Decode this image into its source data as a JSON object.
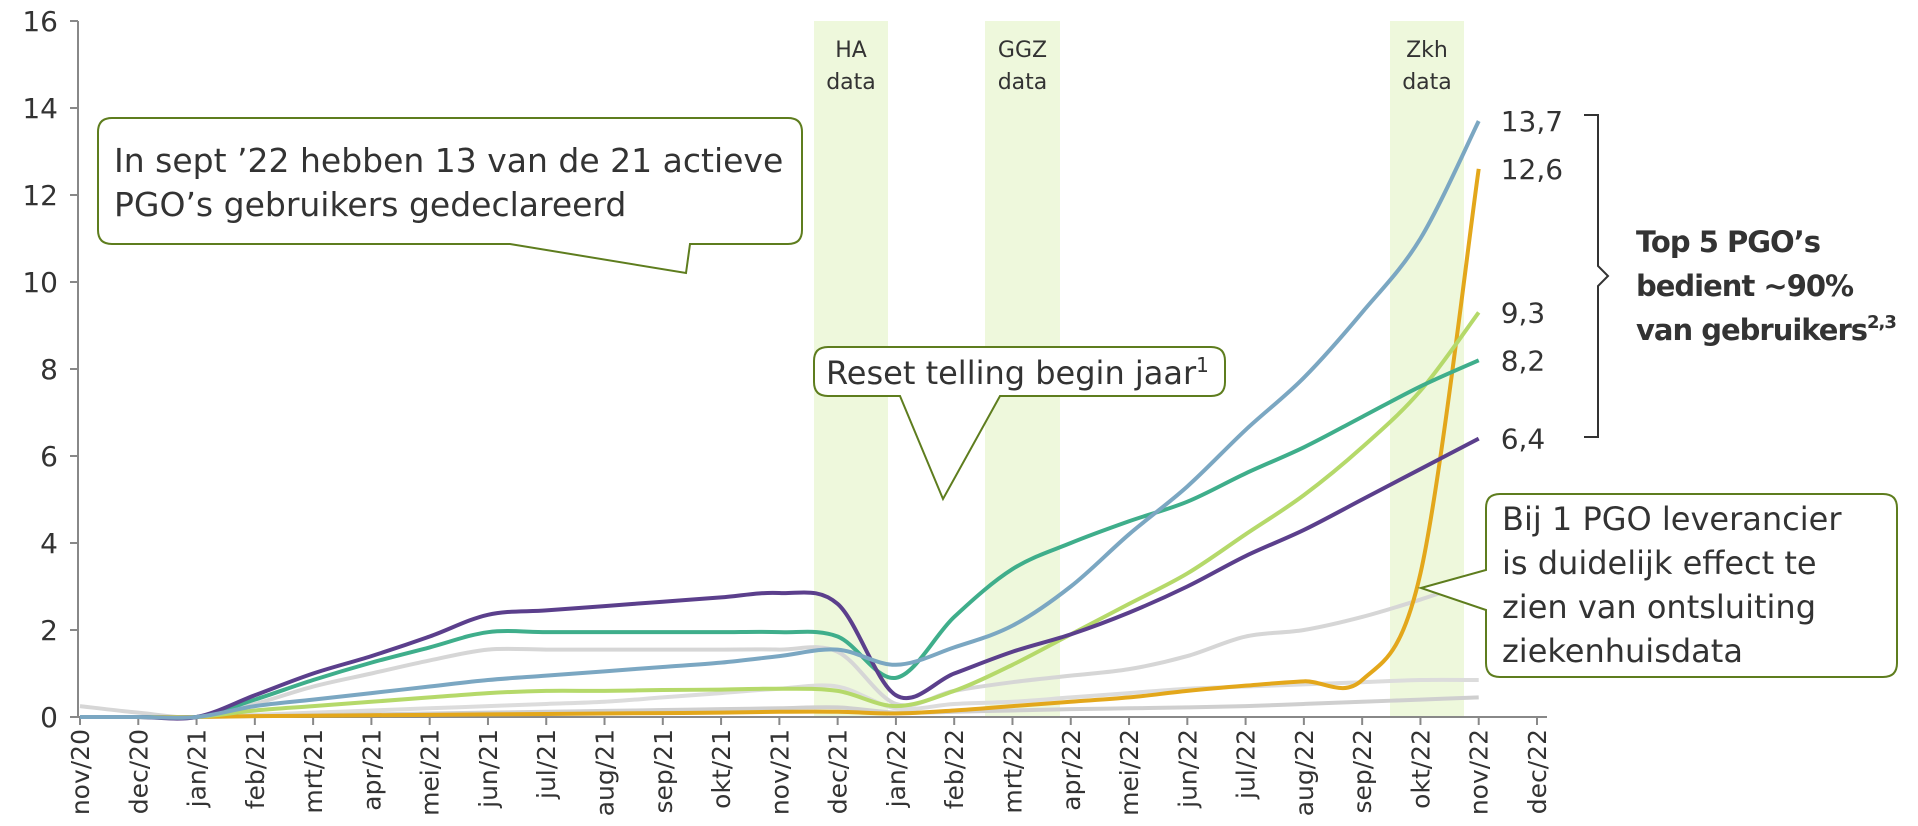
{
  "chart_data": {
    "type": "line",
    "categories": [
      "nov/20",
      "dec/20",
      "jan/21",
      "feb/21",
      "mrt/21",
      "apr/21",
      "mei/21",
      "jun/21",
      "jul/21",
      "aug/21",
      "sep/21",
      "okt/21",
      "nov/21",
      "dec/21",
      "jan/22",
      "feb/22",
      "mrt/22",
      "apr/22",
      "mei/22",
      "jun/22",
      "jul/22",
      "aug/22",
      "sep/22",
      "okt/22",
      "nov/22",
      "dec/22"
    ],
    "ylim": [
      0,
      16
    ],
    "yticks": [
      0,
      2,
      4,
      6,
      8,
      10,
      12,
      14,
      16
    ],
    "series": [
      {
        "color": "#d6d6d6",
        "values": [
          0.25,
          0.1,
          0,
          0.3,
          0.7,
          1.0,
          1.3,
          1.55,
          1.55,
          1.55,
          1.55,
          1.55,
          1.55,
          1.5,
          0.3,
          0.6,
          0.8,
          0.95,
          1.1,
          1.4,
          1.85,
          2.0,
          2.3,
          2.7,
          3.15,
          null
        ]
      },
      {
        "color": "#dcdcdc",
        "values": [
          0,
          0,
          0,
          0.05,
          0.1,
          0.15,
          0.2,
          0.25,
          0.3,
          0.35,
          0.45,
          0.55,
          0.65,
          0.7,
          0.2,
          0.3,
          0.35,
          0.45,
          0.55,
          0.65,
          0.7,
          0.75,
          0.8,
          0.85,
          0.85,
          null
        ]
      },
      {
        "color": "#cfcfcf",
        "values": [
          0,
          0,
          0,
          0.02,
          0.04,
          0.06,
          0.08,
          0.1,
          0.12,
          0.14,
          0.16,
          0.18,
          0.2,
          0.22,
          0.1,
          0.12,
          0.15,
          0.18,
          0.2,
          0.22,
          0.25,
          0.3,
          0.35,
          0.4,
          0.45,
          null
        ]
      },
      {
        "color": "#e3a71b",
        "values": [
          0,
          0,
          0,
          0.02,
          0.03,
          0.04,
          0.05,
          0.06,
          0.07,
          0.08,
          0.09,
          0.1,
          0.12,
          0.12,
          0.08,
          0.15,
          0.25,
          0.35,
          0.45,
          0.6,
          0.72,
          0.82,
          0.85,
          3.3,
          12.6,
          null
        ],
        "value_labels": [
          null,
          null,
          null,
          null,
          null,
          null,
          null,
          null,
          null,
          null,
          null,
          null,
          null,
          null,
          null,
          null,
          null,
          null,
          null,
          null,
          null,
          null,
          null,
          null,
          "12,6",
          null
        ]
      },
      {
        "color": "#b5d96a",
        "values": [
          0,
          0,
          0,
          0.15,
          0.25,
          0.35,
          0.45,
          0.55,
          0.6,
          0.6,
          0.62,
          0.63,
          0.65,
          0.6,
          0.25,
          0.6,
          1.2,
          1.9,
          2.6,
          3.3,
          4.2,
          5.1,
          6.2,
          7.5,
          9.3,
          null
        ],
        "value_labels": [
          null,
          null,
          null,
          null,
          null,
          null,
          null,
          null,
          null,
          null,
          null,
          null,
          null,
          null,
          null,
          null,
          null,
          null,
          null,
          null,
          null,
          null,
          null,
          null,
          "9,3",
          null
        ]
      },
      {
        "color": "#3fae8b",
        "values": [
          0,
          0,
          0,
          0.4,
          0.85,
          1.25,
          1.6,
          1.95,
          1.95,
          1.95,
          1.95,
          1.95,
          1.95,
          1.85,
          0.9,
          2.3,
          3.4,
          4.0,
          4.5,
          4.95,
          5.6,
          6.2,
          6.9,
          7.6,
          8.2,
          null
        ],
        "value_labels": [
          null,
          null,
          null,
          null,
          null,
          null,
          null,
          null,
          null,
          null,
          null,
          null,
          null,
          null,
          null,
          null,
          null,
          null,
          null,
          null,
          null,
          null,
          null,
          null,
          "8,2",
          null
        ]
      },
      {
        "color": "#5b3f8c",
        "values": [
          0,
          0,
          0,
          0.5,
          1.0,
          1.4,
          1.85,
          2.35,
          2.45,
          2.55,
          2.65,
          2.75,
          2.85,
          2.6,
          0.5,
          1.0,
          1.5,
          1.9,
          2.4,
          3.0,
          3.7,
          4.3,
          5.0,
          5.7,
          6.4,
          null
        ],
        "value_labels": [
          null,
          null,
          null,
          null,
          null,
          null,
          null,
          null,
          null,
          null,
          null,
          null,
          null,
          null,
          null,
          null,
          null,
          null,
          null,
          null,
          null,
          null,
          null,
          null,
          "6,4",
          null
        ]
      },
      {
        "color": "#7ba7c2",
        "values": [
          0,
          0,
          0,
          0.25,
          0.4,
          0.55,
          0.7,
          0.85,
          0.95,
          1.05,
          1.15,
          1.25,
          1.4,
          1.55,
          1.2,
          1.6,
          2.1,
          3.0,
          4.2,
          5.3,
          6.6,
          7.8,
          9.3,
          11.0,
          13.7,
          null
        ],
        "value_labels": [
          null,
          null,
          null,
          null,
          null,
          null,
          null,
          null,
          null,
          null,
          null,
          null,
          null,
          null,
          null,
          null,
          null,
          null,
          null,
          null,
          null,
          null,
          null,
          null,
          "13,7",
          null
        ]
      }
    ],
    "bands": [
      [
        "HA",
        "data"
      ],
      [
        "GGZ",
        "data"
      ],
      [
        "Zkh",
        "data"
      ]
    ],
    "annotations": {
      "callout_sept": [
        "In sept ’22 hebben 13 van de 21 actieve",
        "PGO’s gebruikers gedeclareerd"
      ],
      "callout_reset": {
        "text": "Reset telling begin jaar",
        "sup": "1"
      },
      "callout_zkh": [
        "Bij 1 PGO leverancier",
        "is duidelijk effect te",
        "zien van ontsluiting",
        "ziekenhuisdata"
      ],
      "bracket": {
        "lines": [
          "Top 5 PGO’s",
          "bedient ~90%",
          "van gebruikers"
        ],
        "sup": "2,3"
      }
    }
  }
}
